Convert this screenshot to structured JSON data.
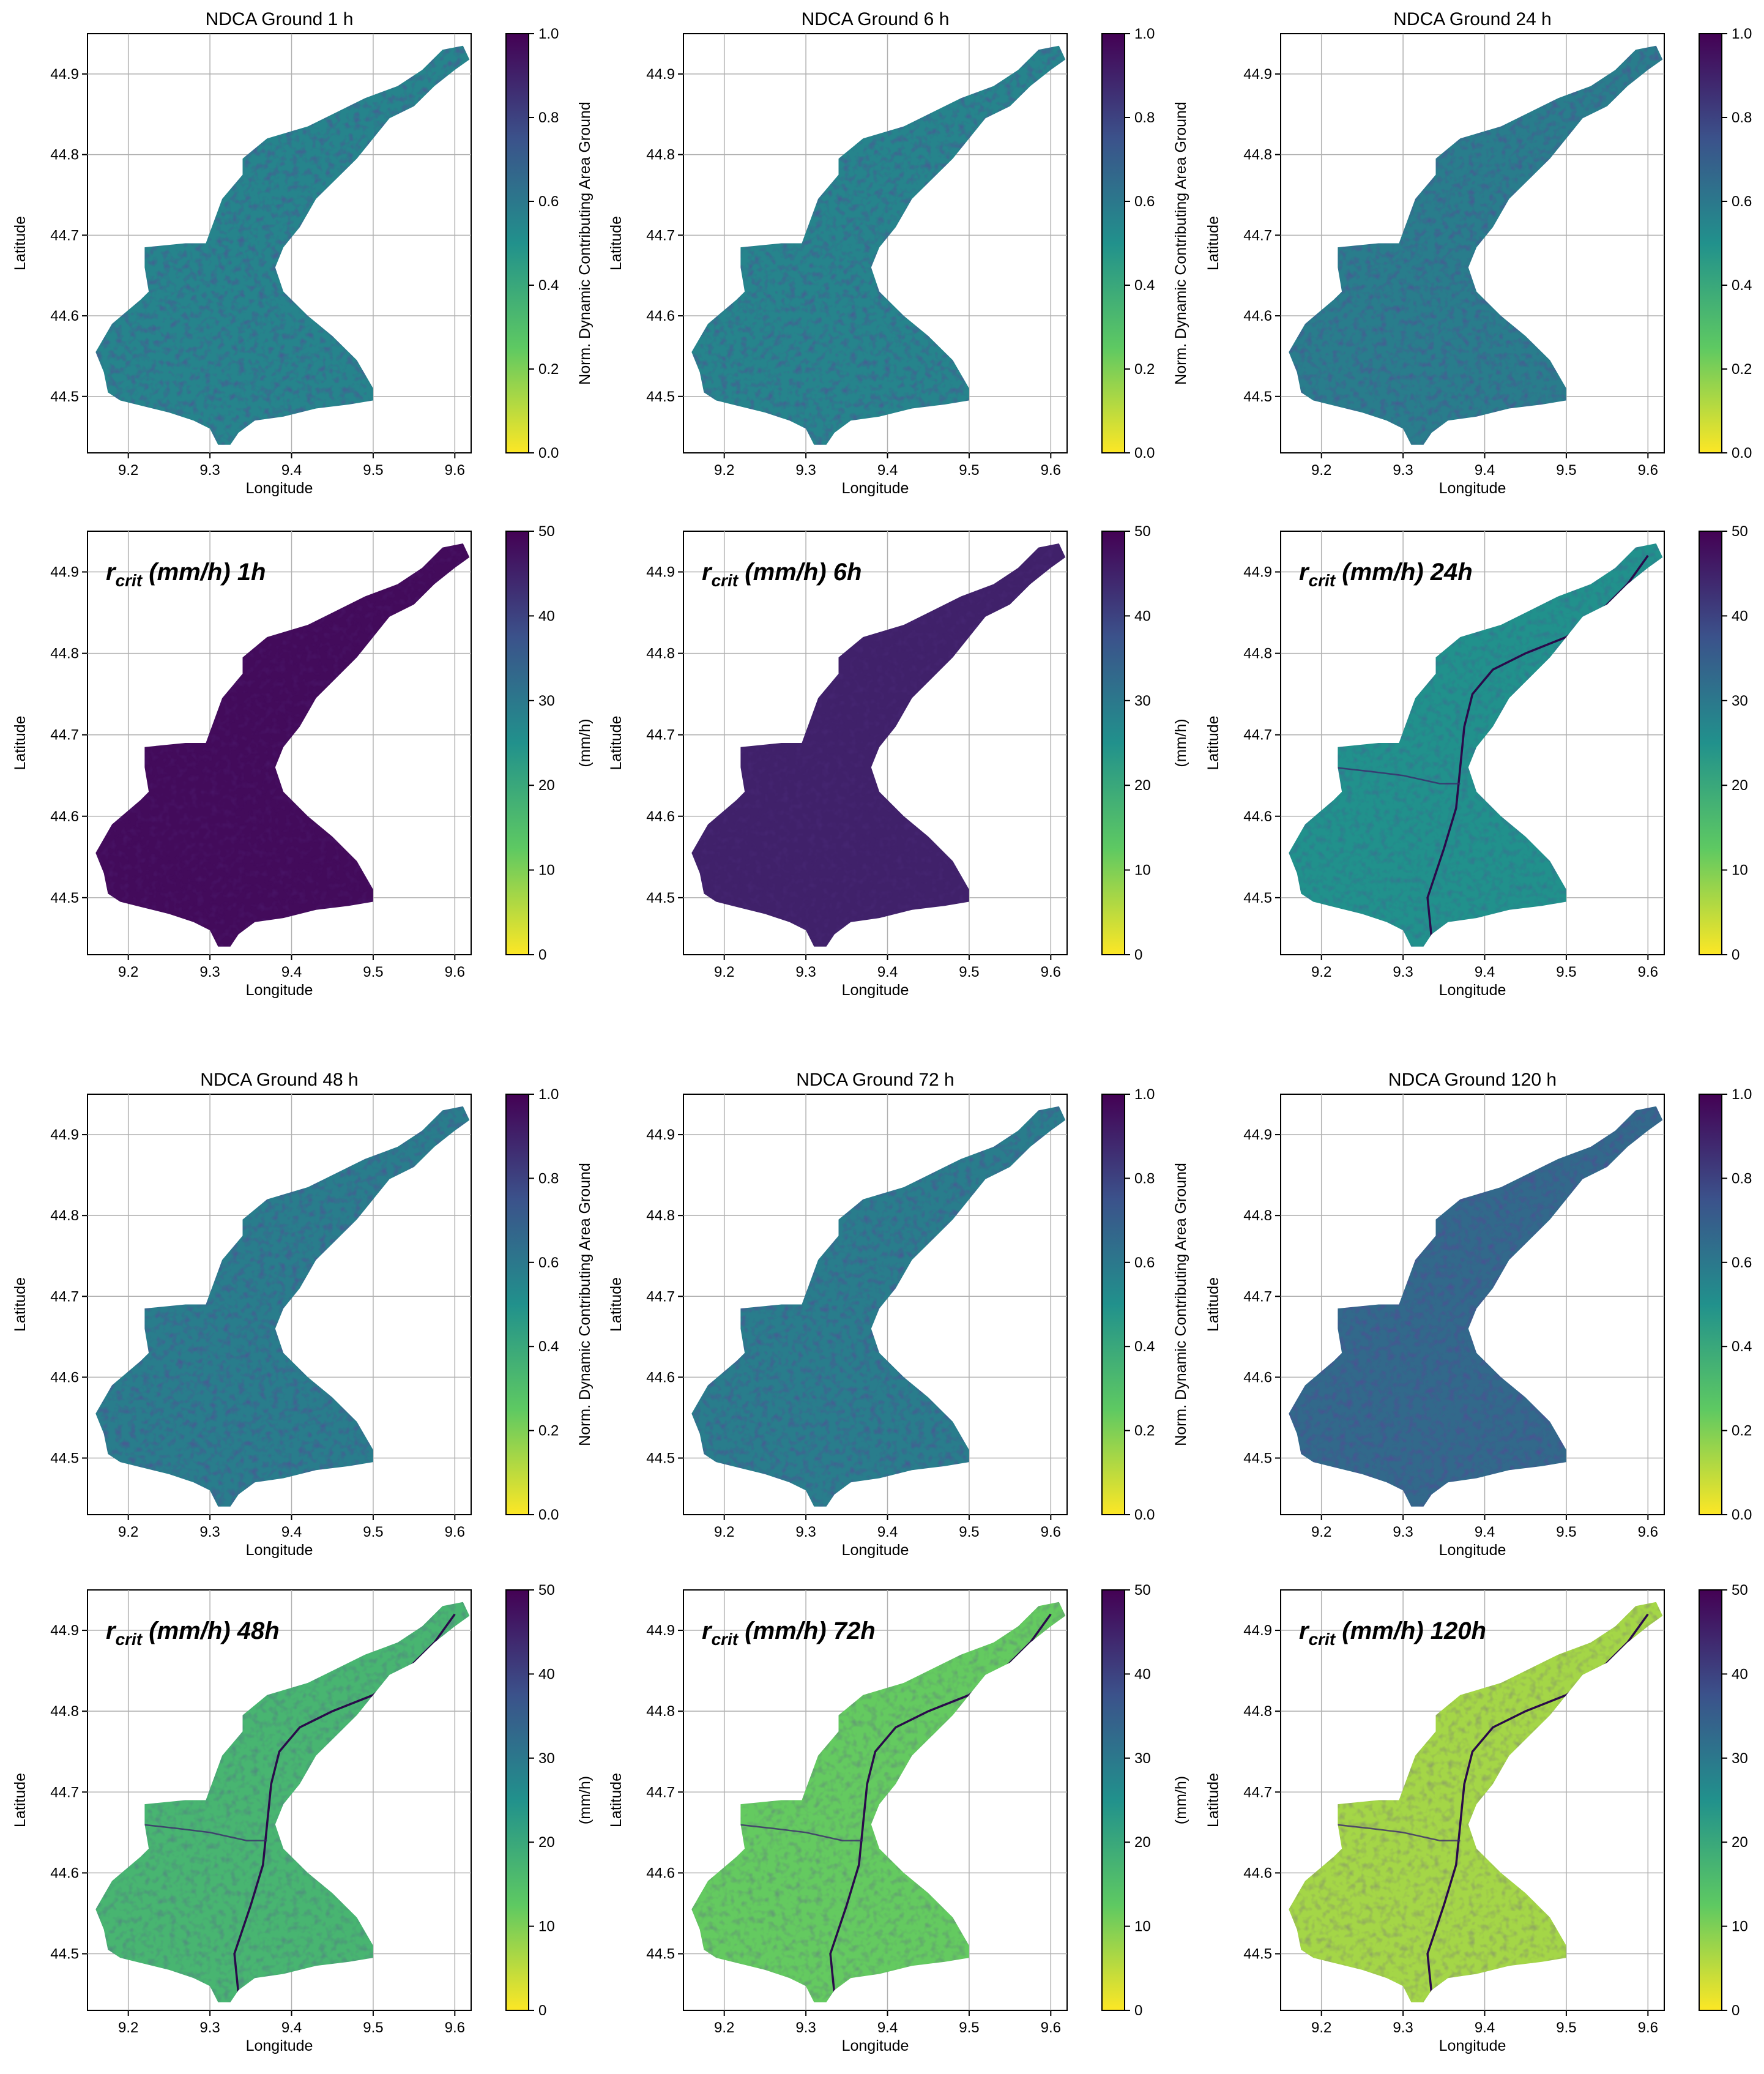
{
  "xlabel": "Longitude",
  "ylabel": "Latitude",
  "x_ticks": [
    "9.2",
    "9.3",
    "9.4",
    "9.5",
    "9.6"
  ],
  "y_ticks": [
    "44.5",
    "44.6",
    "44.7",
    "44.8",
    "44.9"
  ],
  "ndca_colorbar": {
    "label": "Norm. Dynamic Contributing Area Ground",
    "ticks": [
      "0.0",
      "0.2",
      "0.4",
      "0.6",
      "0.8",
      "1.0"
    ]
  },
  "rcrit_colorbar": {
    "label": "(mm/h)",
    "ticks": [
      "0",
      "10",
      "20",
      "30",
      "40",
      "50"
    ]
  },
  "colormap": "viridis (reversed)",
  "panels": [
    {
      "kind": "ndca",
      "title": "NDCA Ground 1 h",
      "level": 0.55
    },
    {
      "kind": "ndca",
      "title": "NDCA Ground 6 h",
      "level": 0.55
    },
    {
      "kind": "ndca",
      "title": "NDCA Ground 24 h",
      "level": 0.58
    },
    {
      "kind": "rcrit",
      "label_main": "r",
      "label_sub": "crit",
      "label_tail": " (mm/h) 1h",
      "level": 0.97
    },
    {
      "kind": "rcrit",
      "label_main": "r",
      "label_sub": "crit",
      "label_tail": " (mm/h) 6h",
      "level": 0.9
    },
    {
      "kind": "rcrit",
      "label_main": "r",
      "label_sub": "crit",
      "label_tail": " (mm/h) 24h",
      "level": 0.5
    },
    {
      "kind": "ndca",
      "title": "NDCA Ground 48 h",
      "level": 0.58
    },
    {
      "kind": "ndca",
      "title": "NDCA Ground 72 h",
      "level": 0.58
    },
    {
      "kind": "ndca",
      "title": "NDCA Ground 120 h",
      "level": 0.66
    },
    {
      "kind": "rcrit",
      "label_main": "r",
      "label_sub": "crit",
      "label_tail": " (mm/h) 48h",
      "level": 0.34
    },
    {
      "kind": "rcrit",
      "label_main": "r",
      "label_sub": "crit",
      "label_tail": " (mm/h) 72h",
      "level": 0.24
    },
    {
      "kind": "rcrit",
      "label_main": "r",
      "label_sub": "crit",
      "label_tail": " (mm/h) 120h",
      "level": 0.14
    }
  ]
}
